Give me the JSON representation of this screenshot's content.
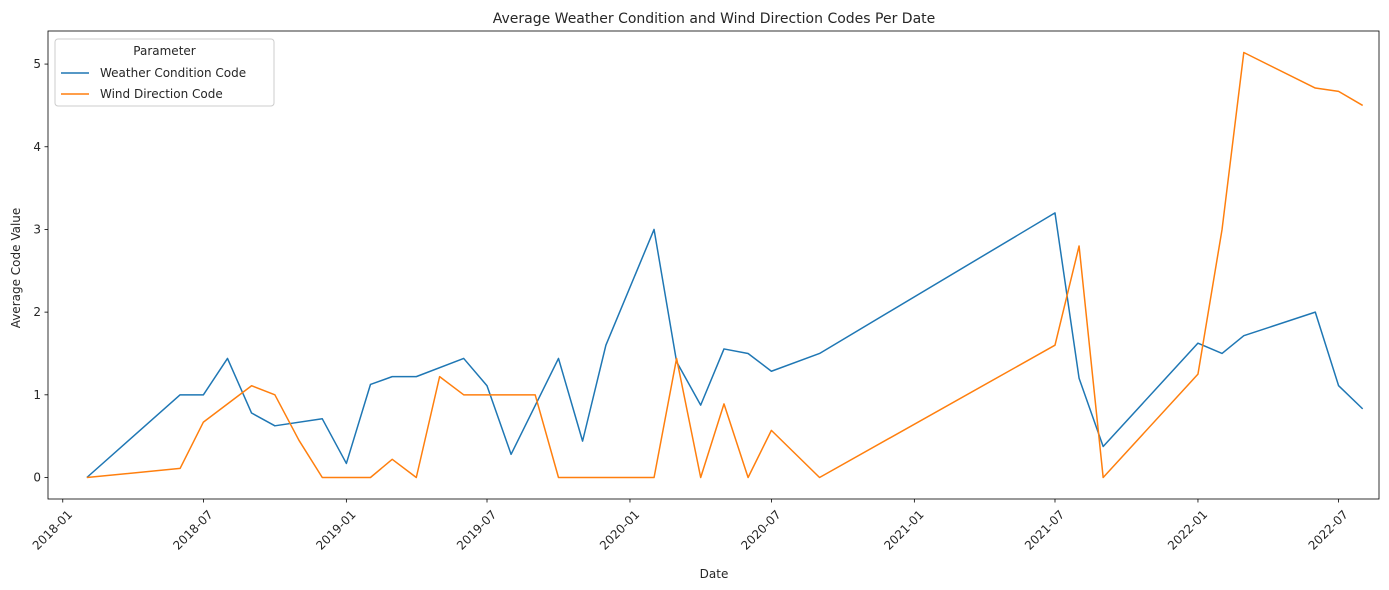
{
  "chart_data": {
    "type": "line",
    "title": "Average Weather Condition and Wind Direction Codes Per Date",
    "xlabel": "Date",
    "ylabel": "Average Code Value",
    "x_axis_type": "date",
    "xlim": [
      "2017-12-13",
      "2022-08-22"
    ],
    "ylim": [
      -0.26,
      5.4
    ],
    "x_ticks": [
      "2018-01",
      "2018-07",
      "2019-01",
      "2019-07",
      "2020-01",
      "2020-07",
      "2021-01",
      "2021-07",
      "2022-01",
      "2022-07"
    ],
    "y_ticks": [
      0,
      1,
      2,
      3,
      4,
      5
    ],
    "grid": false,
    "legend": {
      "title": "Parameter",
      "placement": "top-left"
    },
    "series": [
      {
        "name": "Weather Condition Code",
        "color": "#1f77b4",
        "points": [
          [
            "2018-02-01",
            0.0
          ],
          [
            "2018-06-01",
            1.0
          ],
          [
            "2018-07-01",
            1.0
          ],
          [
            "2018-08-01",
            1.44
          ],
          [
            "2018-09-01",
            0.78
          ],
          [
            "2018-10-01",
            0.625
          ],
          [
            "2018-12-01",
            0.71
          ],
          [
            "2019-01-01",
            0.17
          ],
          [
            "2019-02-01",
            1.125
          ],
          [
            "2019-03-01",
            1.22
          ],
          [
            "2019-04-01",
            1.22
          ],
          [
            "2019-06-01",
            1.44
          ],
          [
            "2019-07-01",
            1.11
          ],
          [
            "2019-08-01",
            0.28
          ],
          [
            "2019-10-01",
            1.44
          ],
          [
            "2019-11-01",
            0.44
          ],
          [
            "2019-12-01",
            1.6
          ],
          [
            "2020-02-01",
            3.0
          ],
          [
            "2020-03-01",
            1.4
          ],
          [
            "2020-04-01",
            0.875
          ],
          [
            "2020-05-01",
            1.555
          ],
          [
            "2020-06-01",
            1.5
          ],
          [
            "2020-07-01",
            1.285
          ],
          [
            "2020-09-01",
            1.5
          ],
          [
            "2021-07-01",
            3.2
          ],
          [
            "2021-08-01",
            1.2
          ],
          [
            "2021-09-01",
            0.375
          ],
          [
            "2022-01-01",
            1.625
          ],
          [
            "2022-02-01",
            1.5
          ],
          [
            "2022-03-01",
            1.715
          ],
          [
            "2022-06-01",
            2.0
          ],
          [
            "2022-07-01",
            1.11
          ],
          [
            "2022-08-01",
            0.83
          ]
        ]
      },
      {
        "name": "Wind Direction Code",
        "color": "#ff7f0e",
        "points": [
          [
            "2018-02-01",
            0.0
          ],
          [
            "2018-06-01",
            0.11
          ],
          [
            "2018-07-01",
            0.67
          ],
          [
            "2018-09-01",
            1.11
          ],
          [
            "2018-10-01",
            1.0
          ],
          [
            "2018-11-01",
            0.45
          ],
          [
            "2018-12-01",
            0.0
          ],
          [
            "2019-01-01",
            0.0
          ],
          [
            "2019-02-01",
            0.0
          ],
          [
            "2019-03-01",
            0.22
          ],
          [
            "2019-04-01",
            0.0
          ],
          [
            "2019-05-01",
            1.22
          ],
          [
            "2019-06-01",
            1.0
          ],
          [
            "2019-07-01",
            1.0
          ],
          [
            "2019-09-01",
            1.0
          ],
          [
            "2019-10-01",
            0.0
          ],
          [
            "2019-11-01",
            0.0
          ],
          [
            "2020-02-01",
            0.0
          ],
          [
            "2020-03-01",
            1.44
          ],
          [
            "2020-04-01",
            0.0
          ],
          [
            "2020-05-01",
            0.89
          ],
          [
            "2020-06-01",
            0.0
          ],
          [
            "2020-07-01",
            0.57
          ],
          [
            "2020-09-01",
            0.0
          ],
          [
            "2021-07-01",
            1.6
          ],
          [
            "2021-08-01",
            2.8
          ],
          [
            "2021-09-01",
            0.0
          ],
          [
            "2022-01-01",
            1.25
          ],
          [
            "2022-02-01",
            3.0
          ],
          [
            "2022-03-01",
            5.14
          ],
          [
            "2022-06-01",
            4.71
          ],
          [
            "2022-07-01",
            4.67
          ],
          [
            "2022-08-01",
            4.5
          ]
        ]
      }
    ]
  }
}
